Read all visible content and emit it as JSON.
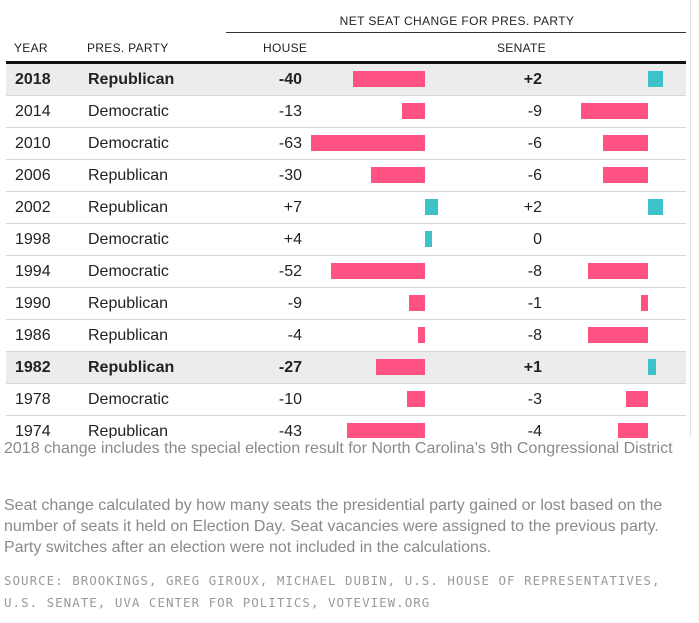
{
  "header": {
    "group_label": "NET SEAT CHANGE FOR PRES. PARTY",
    "col_year": "YEAR",
    "col_party": "PRES. PARTY",
    "col_house": "HOUSE",
    "col_senate": "SENATE"
  },
  "colors": {
    "loss": "#ff5283",
    "gain": "#3dc2c8"
  },
  "chart_data": {
    "type": "table",
    "title": "Net seat change for presidential party",
    "columns": [
      "Year",
      "Pres. party",
      "House",
      "Senate"
    ],
    "highlighted_years": [
      "2018",
      "1982"
    ],
    "rows": [
      {
        "year": "2018",
        "party": "Republican",
        "house": -40,
        "house_label": "-40",
        "senate": 2,
        "senate_label": "+2",
        "highlight": true
      },
      {
        "year": "2014",
        "party": "Democratic",
        "house": -13,
        "house_label": "-13",
        "senate": -9,
        "senate_label": "-9",
        "highlight": false
      },
      {
        "year": "2010",
        "party": "Democratic",
        "house": -63,
        "house_label": "-63",
        "senate": -6,
        "senate_label": "-6",
        "highlight": false
      },
      {
        "year": "2006",
        "party": "Republican",
        "house": -30,
        "house_label": "-30",
        "senate": -6,
        "senate_label": "-6",
        "highlight": false
      },
      {
        "year": "2002",
        "party": "Republican",
        "house": 7,
        "house_label": "+7",
        "senate": 2,
        "senate_label": "+2",
        "highlight": false
      },
      {
        "year": "1998",
        "party": "Democratic",
        "house": 4,
        "house_label": "+4",
        "senate": 0,
        "senate_label": "0",
        "highlight": false
      },
      {
        "year": "1994",
        "party": "Democratic",
        "house": -52,
        "house_label": "-52",
        "senate": -8,
        "senate_label": "-8",
        "highlight": false
      },
      {
        "year": "1990",
        "party": "Republican",
        "house": -9,
        "house_label": "-9",
        "senate": -1,
        "senate_label": "-1",
        "highlight": false
      },
      {
        "year": "1986",
        "party": "Republican",
        "house": -4,
        "house_label": "-4",
        "senate": -8,
        "senate_label": "-8",
        "highlight": false
      },
      {
        "year": "1982",
        "party": "Republican",
        "house": -27,
        "house_label": "-27",
        "senate": 1,
        "senate_label": "+1",
        "highlight": true
      },
      {
        "year": "1978",
        "party": "Democratic",
        "house": -10,
        "house_label": "-10",
        "senate": -3,
        "senate_label": "-3",
        "highlight": false
      },
      {
        "year": "1974",
        "party": "Republican",
        "house": -43,
        "house_label": "-43",
        "senate": -4,
        "senate_label": "-4",
        "highlight": false
      }
    ]
  },
  "notes": {
    "special_election": "2018 change includes the special election result for North Carolina’s 9th Congressional District",
    "method": "Seat change calculated by how many seats the presidential party gained or lost based on the number of seats it held on Election Day. Seat vacancies were assigned to the previous party. Party switches after an election were not included in the calculations."
  },
  "source": "SOURCE: BROOKINGS, GREG GIROUX, MICHAEL DUBIN, U.S. HOUSE OF REPRESENTATIVES, U.S. SENATE, UVA CENTER FOR POLITICS, VOTEVIEW.ORG"
}
